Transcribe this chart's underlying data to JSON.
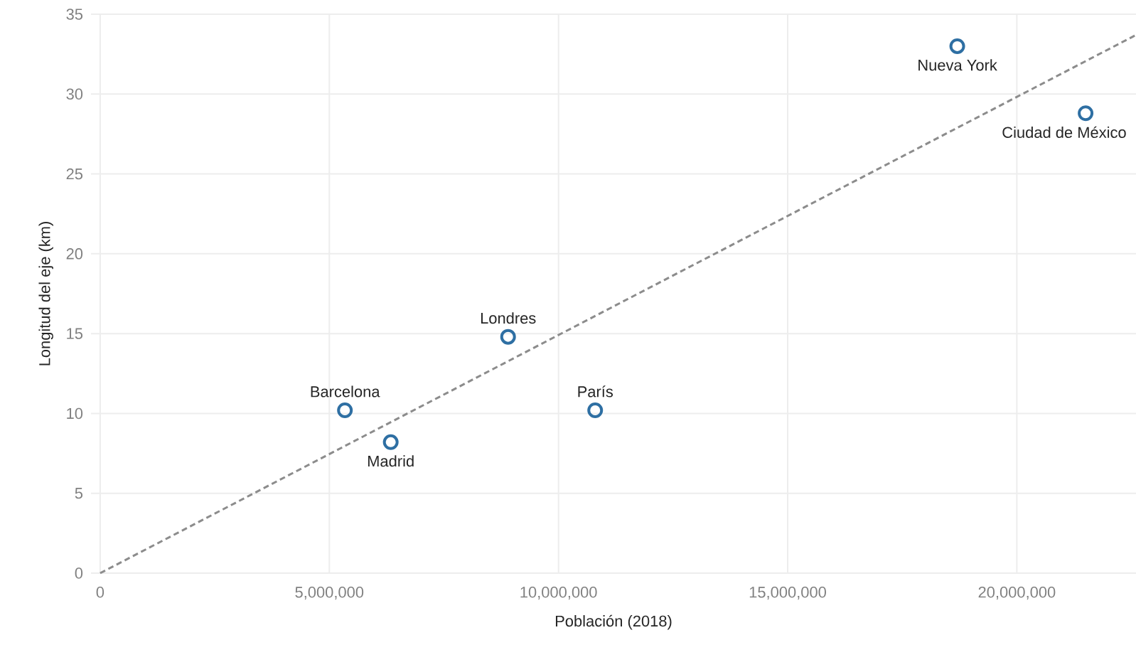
{
  "chart_data": {
    "type": "scatter",
    "xlabel": "Población (2018)",
    "ylabel": "Longitud del eje (km)",
    "xlim": [
      -200000,
      22600000
    ],
    "ylim": [
      0,
      35
    ],
    "xticks": [
      0,
      {
        "value": 5000000,
        "label": "5,000,000"
      },
      {
        "value": 10000000,
        "label": "10,000,000"
      },
      {
        "value": 15000000,
        "label": "15,000,000"
      },
      {
        "value": 20000000,
        "label": "20,000,000"
      }
    ],
    "yticks": [
      0,
      5,
      10,
      15,
      20,
      25,
      30,
      35
    ],
    "grid": true,
    "marker": "circle",
    "series": [
      {
        "color": "#2e6fa3",
        "x": [
          5340000,
          6340000,
          8900000,
          10800000,
          18700000,
          21500000
        ],
        "values": [
          10.2,
          8.2,
          14.8,
          10.2,
          33.0,
          28.8
        ]
      },
      {
        "type": "line",
        "color": "#8c8c8c",
        "line_style": "dashed",
        "marker": "none",
        "x": [
          0,
          22600000
        ],
        "values": [
          0,
          33.7
        ]
      }
    ],
    "annotations": [
      {
        "text": "Barcelona",
        "x": 5340000,
        "y": 10.2
      },
      {
        "text": "Madrid",
        "x": 6340000,
        "y": 8.2
      },
      {
        "text": "Londres",
        "x": 8900000,
        "y": 14.8
      },
      {
        "text": "París",
        "x": 10800000,
        "y": 10.2
      },
      {
        "text": "Nueva York",
        "x": 18700000,
        "y": 33.0
      },
      {
        "text": "Ciudad de México",
        "x": 21500000,
        "y": 28.8
      }
    ]
  }
}
